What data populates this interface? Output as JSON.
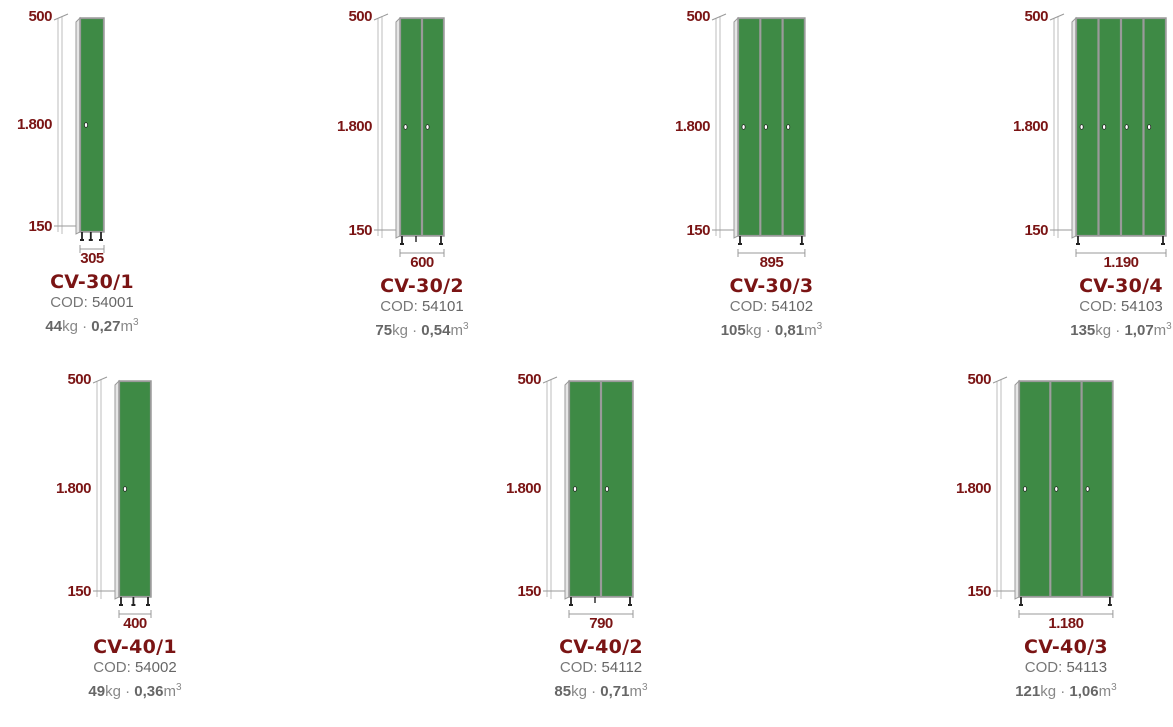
{
  "colors": {
    "door": "#3e8a45",
    "frame": "#9a9a9a",
    "accent": "#7a1414",
    "text": "#777777"
  },
  "labels": {
    "code_prefix": "COD: ",
    "kg_unit": "kg",
    "separator": " · ",
    "m3_unit": "m",
    "m3_exp": "3"
  },
  "lockers": [
    {
      "model": "CV-30/1",
      "code": "54001",
      "kg": "44",
      "m3": "0,27",
      "width": "305",
      "doors": 1,
      "top": "500",
      "height": "1.800",
      "base": "150"
    },
    {
      "model": "CV-30/2",
      "code": "54101",
      "kg": "75",
      "m3": "0,54",
      "width": "600",
      "doors": 2,
      "top": "500",
      "height": "1.800",
      "base": "150"
    },
    {
      "model": "CV-30/3",
      "code": "54102",
      "kg": "105",
      "m3": "0,81",
      "width": "895",
      "doors": 3,
      "top": "500",
      "height": "1.800",
      "base": "150"
    },
    {
      "model": "CV-30/4",
      "code": "54103",
      "kg": "135",
      "m3": "1,07",
      "width": "1.190",
      "doors": 4,
      "top": "500",
      "height": "1.800",
      "base": "150"
    },
    {
      "model": "CV-40/1",
      "code": "54002",
      "kg": "49",
      "m3": "0,36",
      "width": "400",
      "doors": 1,
      "top": "500",
      "height": "1.800",
      "base": "150"
    },
    {
      "model": "CV-40/2",
      "code": "54112",
      "kg": "85",
      "m3": "0,71",
      "width": "790",
      "doors": 2,
      "top": "500",
      "height": "1.800",
      "base": "150"
    },
    {
      "model": "CV-40/3",
      "code": "54113",
      "kg": "121",
      "m3": "1,06",
      "width": "1.180",
      "doors": 3,
      "top": "500",
      "height": "1.800",
      "base": "150"
    }
  ]
}
